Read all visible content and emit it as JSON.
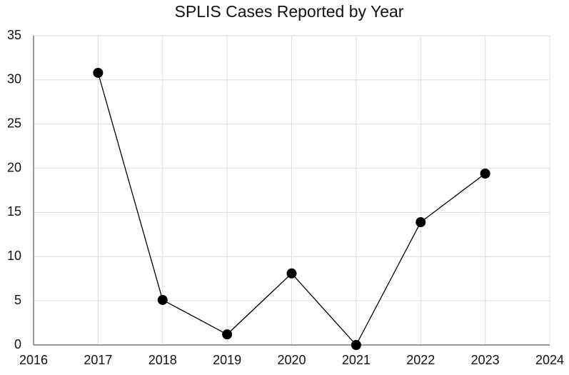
{
  "chart_data": {
    "type": "line",
    "title": "SPLIS Cases Reported by Year",
    "x": [
      2017,
      2018,
      2019,
      2020,
      2021,
      2022,
      2023
    ],
    "series": [
      {
        "name": "SPLIS cases",
        "color": "#000000",
        "values": [
          30.8,
          5.1,
          1.2,
          8.1,
          0,
          13.9,
          19.4
        ]
      }
    ],
    "xlim": [
      2016,
      2024
    ],
    "xticks": [
      2016,
      2017,
      2018,
      2019,
      2020,
      2021,
      2022,
      2023,
      2024
    ],
    "ylim": [
      0,
      35
    ],
    "yticks": [
      0,
      5,
      10,
      15,
      20,
      25,
      30,
      35
    ],
    "grid": true
  }
}
